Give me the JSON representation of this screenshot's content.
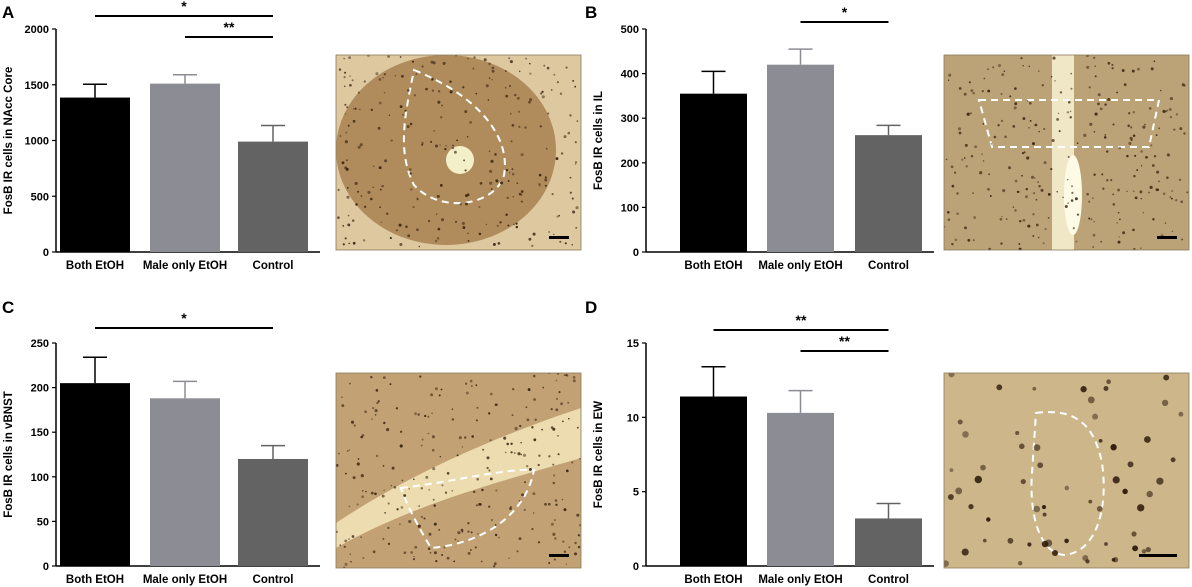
{
  "chart_data": [
    {
      "panel": "A",
      "type": "bar",
      "categories": [
        "Both EtOH",
        "Male only EtOH",
        "Control"
      ],
      "values": [
        1385,
        1510,
        990
      ],
      "errors": [
        120,
        80,
        145
      ],
      "colors": [
        "#000000",
        "#8c8c94",
        "#636363"
      ],
      "ylabel": "FosB IR cells in NAcc Core",
      "ylim": [
        0,
        2000
      ],
      "yticks": [
        "0",
        "500",
        "1000",
        "1500",
        "2000"
      ],
      "significance": [
        {
          "from": 0,
          "to": 2,
          "label": "*"
        },
        {
          "from": 1,
          "to": 2,
          "label": "**"
        }
      ]
    },
    {
      "panel": "B",
      "type": "bar",
      "categories": [
        "Both EtOH",
        "Male only EtOH",
        "Control"
      ],
      "values": [
        355,
        420,
        262
      ],
      "errors": [
        50,
        35,
        22
      ],
      "colors": [
        "#000000",
        "#8c8c94",
        "#636363"
      ],
      "ylabel": "FosB IR cells in IL",
      "ylim": [
        0,
        500
      ],
      "yticks": [
        "0",
        "100",
        "200",
        "300",
        "400",
        "500"
      ],
      "significance": [
        {
          "from": 1,
          "to": 2,
          "label": "*"
        }
      ]
    },
    {
      "panel": "C",
      "type": "bar",
      "categories": [
        "Both EtOH",
        "Male only EtOH",
        "Control"
      ],
      "values": [
        205,
        188,
        120
      ],
      "errors": [
        29,
        19,
        15
      ],
      "colors": [
        "#000000",
        "#8c8c94",
        "#636363"
      ],
      "ylabel": "FosB IR cells in vBNST",
      "ylim": [
        0,
        250
      ],
      "yticks": [
        "0",
        "50",
        "100",
        "150",
        "200",
        "250"
      ],
      "significance": [
        {
          "from": 0,
          "to": 2,
          "label": "*"
        }
      ]
    },
    {
      "panel": "D",
      "type": "bar",
      "categories": [
        "Both EtOH",
        "Male only EtOH",
        "Control"
      ],
      "values": [
        11.4,
        10.3,
        3.2
      ],
      "errors": [
        2.0,
        1.5,
        1.0
      ],
      "colors": [
        "#000000",
        "#8c8c94",
        "#636363"
      ],
      "ylabel": "FosB IR cells in EW",
      "ylim": [
        0,
        15
      ],
      "yticks": [
        "0",
        "5",
        "10",
        "15"
      ],
      "significance": [
        {
          "from": 0,
          "to": 2,
          "label": "**"
        },
        {
          "from": 1,
          "to": 2,
          "label": "**"
        }
      ]
    }
  ],
  "micrographs": [
    {
      "panel": "A",
      "stain": "#a88150",
      "background": "#ddc8a0",
      "outline": "ventral striatum outline",
      "scale_bar": true
    },
    {
      "panel": "B",
      "stain": "#9a7a4a",
      "background": "#e2d2ae",
      "outline": "prefrontal midline outline",
      "scale_bar": true
    },
    {
      "panel": "C",
      "stain": "#b08b5c",
      "background": "#dcc59a",
      "outline": "bed nucleus outline",
      "scale_bar": true
    },
    {
      "panel": "D",
      "stain": "#bfa77a",
      "background": "#d8c49a",
      "outline": "midbrain nucleus outline",
      "scale_bar": true
    }
  ]
}
